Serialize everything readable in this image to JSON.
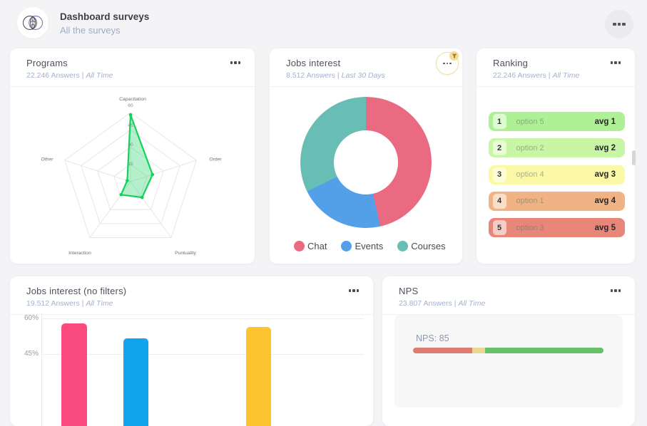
{
  "header": {
    "title": "Dashboard surveys",
    "subtitle": "All the surveys"
  },
  "meta_separator": "|",
  "cards": {
    "programs": {
      "title": "Programs",
      "answers": "22.246 Answers",
      "period": "All Time"
    },
    "jobs": {
      "title": "Jobs interest",
      "answers": "8.512 Answers",
      "period": "Last 30 Days"
    },
    "ranking": {
      "title": "Ranking",
      "answers": "22.246 Answers",
      "period": "All Time"
    },
    "jobs_no_filters": {
      "title": "Jobs interest (no filters)",
      "answers": "19.512 Answers",
      "period": "All Time"
    },
    "nps": {
      "title": "NPS",
      "answers": "23.807 Answers",
      "period": "All Time"
    }
  },
  "ranking_items": [
    {
      "rank": "1",
      "label": "option 5",
      "value": "avg 1",
      "bg": "#aef195",
      "badge_bg": "#dff9d2"
    },
    {
      "rank": "2",
      "label": "option 2",
      "value": "avg 2",
      "bg": "#c9f6a4",
      "badge_bg": "#eafbd5"
    },
    {
      "rank": "3",
      "label": "option 4",
      "value": "avg 3",
      "bg": "#fbf9a6",
      "badge_bg": "#fdfcd9"
    },
    {
      "rank": "4",
      "label": "option 1",
      "value": "avg 4",
      "bg": "#f1b384",
      "badge_bg": "#f8dfc8"
    },
    {
      "rank": "5",
      "label": "option 3",
      "value": "avg 5",
      "bg": "#e8867a",
      "badge_bg": "#f4cdc6"
    }
  ],
  "chart_data": [
    {
      "id": "programs-radar",
      "type": "radar",
      "title": "Programs",
      "axes": [
        "Capacitation",
        "Order",
        "Puntuality",
        "Interaction",
        "Other"
      ],
      "values": [
        58,
        20,
        17,
        14,
        3
      ],
      "max": 60,
      "ticks": [
        "60",
        "45",
        "30",
        "15"
      ],
      "stroke": "#17d05c",
      "fill": "rgba(23,208,92,0.32)",
      "grid": true
    },
    {
      "id": "jobs-interest-donut",
      "type": "pie",
      "title": "Jobs interest",
      "labels": [
        "Chat",
        "Events",
        "Courses"
      ],
      "values_pct": [
        46.5,
        21.2,
        32.3
      ],
      "colors": [
        "#ea6a82",
        "#53a0e8",
        "#68bdb5"
      ],
      "legend_position": "bottom",
      "donut": true
    },
    {
      "id": "jobs-interest-bars",
      "type": "bar",
      "title": "Jobs interest (no filters)",
      "yticks": [
        "60%",
        "45%"
      ],
      "values_pct": [
        58,
        51.5,
        56.5
      ],
      "colors": [
        "#fa4b7e",
        "#10a3ee",
        "#fcc52f"
      ],
      "ylim_visible": [
        45,
        60
      ],
      "note": "bottom of chart cropped by viewport"
    },
    {
      "id": "nps-gauge",
      "type": "bar",
      "title": "NPS",
      "label": "NPS: 85",
      "value": 85,
      "segments": [
        {
          "name": "detractors",
          "color": "#dc7e72",
          "pct": 31
        },
        {
          "name": "passives",
          "color": "#e9d693",
          "pct": 7
        },
        {
          "name": "promoters",
          "color": "#68c169",
          "pct": 62
        }
      ]
    }
  ],
  "colors": {
    "page_bg": "#f4f4f6",
    "card_bg": "#ffffff",
    "accent_subtitle": "#a6b0cc",
    "filter_accent": "#f2dc99"
  }
}
